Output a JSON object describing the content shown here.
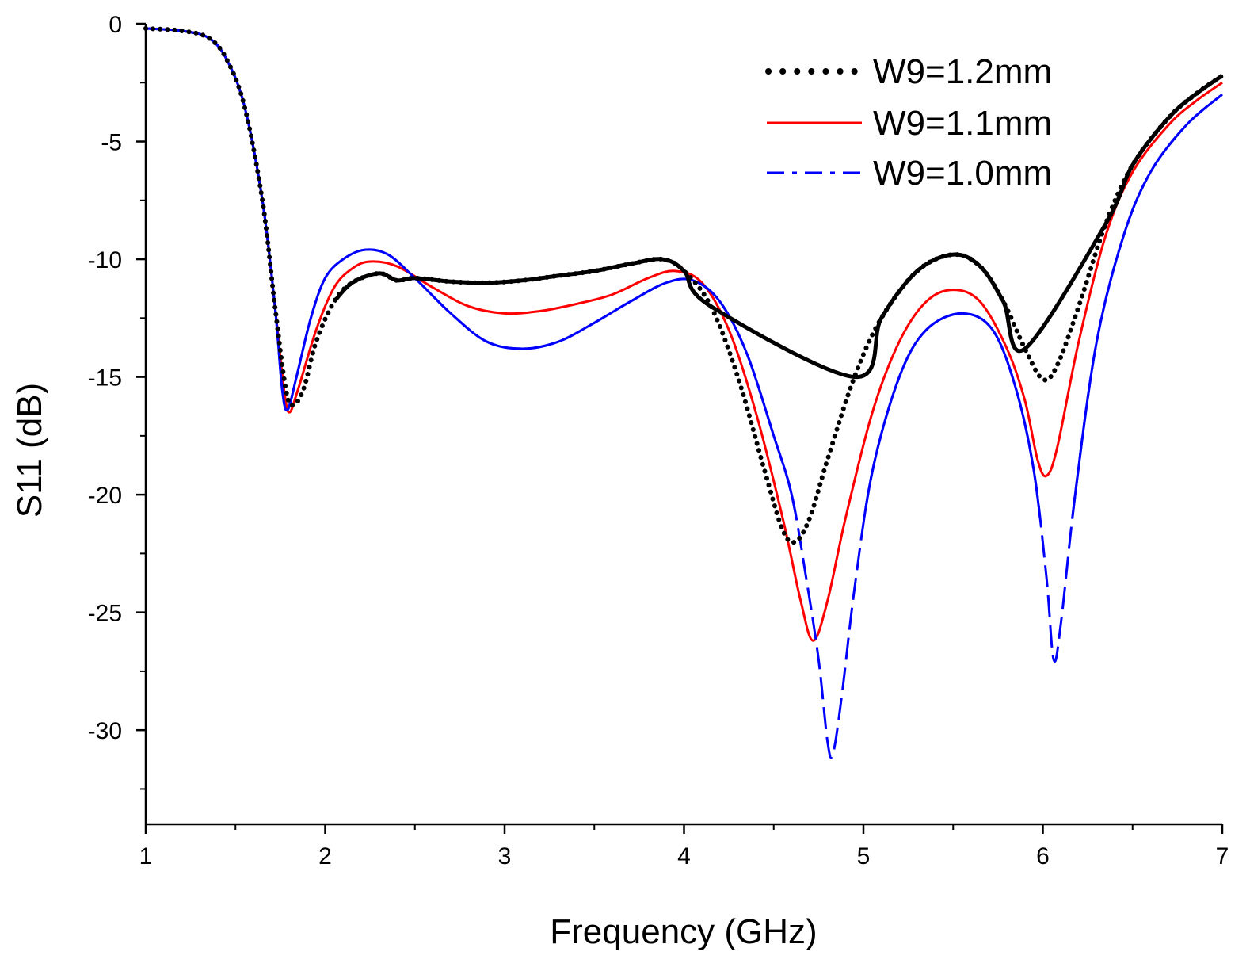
{
  "chart_data": {
    "type": "line",
    "title": "",
    "xlabel": "Frequency (GHz)",
    "ylabel": "S11 (dB)",
    "xlim": [
      1,
      7
    ],
    "ylim": [
      -34,
      0
    ],
    "x_ticks": [
      "1",
      "2",
      "3",
      "4",
      "5",
      "6",
      "7"
    ],
    "y_ticks": [
      "0",
      "-5",
      "-10",
      "-15",
      "-20",
      "-25",
      "-30"
    ],
    "grid": false,
    "legend_position": "top-right",
    "series": [
      {
        "name": "W9=1.2mm",
        "color": "#000000",
        "style": "dotted",
        "points": [
          [
            1.0,
            -0.2
          ],
          [
            1.2,
            -0.3
          ],
          [
            1.35,
            -0.6
          ],
          [
            1.45,
            -1.5
          ],
          [
            1.55,
            -3.5
          ],
          [
            1.65,
            -7.5
          ],
          [
            1.72,
            -12.0
          ],
          [
            1.78,
            -15.5
          ],
          [
            1.82,
            -16.2
          ],
          [
            1.88,
            -15.5
          ],
          [
            1.95,
            -13.5
          ],
          [
            2.05,
            -11.8
          ],
          [
            2.15,
            -11.0
          ],
          [
            2.3,
            -10.6
          ],
          [
            2.4,
            -10.9
          ],
          [
            2.5,
            -10.8
          ],
          [
            2.7,
            -10.95
          ],
          [
            2.9,
            -11.0
          ],
          [
            3.1,
            -10.9
          ],
          [
            3.3,
            -10.7
          ],
          [
            3.5,
            -10.5
          ],
          [
            3.7,
            -10.2
          ],
          [
            3.88,
            -10.0
          ],
          [
            4.0,
            -10.5
          ],
          [
            4.15,
            -12.0
          ],
          [
            4.3,
            -15.0
          ],
          [
            4.45,
            -19.0
          ],
          [
            4.55,
            -21.5
          ],
          [
            4.62,
            -22.0
          ],
          [
            4.7,
            -21.0
          ],
          [
            4.8,
            -18.5
          ],
          [
            4.95,
            -15.0
          ],
          [
            5.1,
            -12.5
          ],
          [
            5.3,
            -10.5
          ],
          [
            5.5,
            -9.8
          ],
          [
            5.65,
            -10.3
          ],
          [
            5.78,
            -11.8
          ],
          [
            5.9,
            -13.8
          ],
          [
            6.0,
            -15.1
          ],
          [
            6.08,
            -14.5
          ],
          [
            6.2,
            -12.0
          ],
          [
            6.35,
            -8.5
          ],
          [
            6.5,
            -6.0
          ],
          [
            6.7,
            -4.0
          ],
          [
            6.85,
            -3.0
          ],
          [
            7.0,
            -2.2
          ]
        ]
      },
      {
        "name": "W9=1.1mm",
        "color": "#ff0000",
        "style": "solid",
        "points": [
          [
            1.0,
            -0.2
          ],
          [
            1.2,
            -0.3
          ],
          [
            1.35,
            -0.6
          ],
          [
            1.45,
            -1.5
          ],
          [
            1.55,
            -3.5
          ],
          [
            1.65,
            -7.5
          ],
          [
            1.72,
            -12.0
          ],
          [
            1.77,
            -15.5
          ],
          [
            1.8,
            -16.5
          ],
          [
            1.85,
            -15.5
          ],
          [
            1.95,
            -13.0
          ],
          [
            2.05,
            -11.2
          ],
          [
            2.15,
            -10.4
          ],
          [
            2.25,
            -10.1
          ],
          [
            2.4,
            -10.3
          ],
          [
            2.6,
            -11.2
          ],
          [
            2.8,
            -12.0
          ],
          [
            3.0,
            -12.3
          ],
          [
            3.2,
            -12.2
          ],
          [
            3.4,
            -11.9
          ],
          [
            3.6,
            -11.5
          ],
          [
            3.8,
            -10.8
          ],
          [
            3.95,
            -10.5
          ],
          [
            4.1,
            -11.0
          ],
          [
            4.25,
            -13.0
          ],
          [
            4.4,
            -16.5
          ],
          [
            4.55,
            -21.0
          ],
          [
            4.65,
            -24.5
          ],
          [
            4.72,
            -26.2
          ],
          [
            4.8,
            -24.5
          ],
          [
            4.9,
            -21.0
          ],
          [
            5.05,
            -16.5
          ],
          [
            5.2,
            -13.5
          ],
          [
            5.35,
            -11.8
          ],
          [
            5.5,
            -11.3
          ],
          [
            5.65,
            -11.8
          ],
          [
            5.8,
            -13.8
          ],
          [
            5.9,
            -16.0
          ],
          [
            5.97,
            -18.5
          ],
          [
            6.02,
            -19.2
          ],
          [
            6.08,
            -18.0
          ],
          [
            6.2,
            -13.5
          ],
          [
            6.35,
            -9.0
          ],
          [
            6.5,
            -6.3
          ],
          [
            6.7,
            -4.3
          ],
          [
            6.85,
            -3.3
          ],
          [
            7.0,
            -2.5
          ]
        ]
      },
      {
        "name": "W9=1.0mm",
        "color": "#0000ff",
        "style": "solid-dashdot",
        "points": [
          [
            1.0,
            -0.2
          ],
          [
            1.2,
            -0.3
          ],
          [
            1.35,
            -0.6
          ],
          [
            1.45,
            -1.5
          ],
          [
            1.55,
            -3.5
          ],
          [
            1.65,
            -7.5
          ],
          [
            1.72,
            -12.0
          ],
          [
            1.76,
            -15.5
          ],
          [
            1.79,
            -16.4
          ],
          [
            1.84,
            -15.0
          ],
          [
            1.92,
            -12.5
          ],
          [
            2.0,
            -10.8
          ],
          [
            2.1,
            -10.0
          ],
          [
            2.22,
            -9.6
          ],
          [
            2.35,
            -9.8
          ],
          [
            2.5,
            -10.8
          ],
          [
            2.7,
            -12.3
          ],
          [
            2.9,
            -13.5
          ],
          [
            3.1,
            -13.8
          ],
          [
            3.3,
            -13.5
          ],
          [
            3.5,
            -12.7
          ],
          [
            3.7,
            -11.8
          ],
          [
            3.9,
            -11.0
          ],
          [
            4.05,
            -10.9
          ],
          [
            4.2,
            -11.8
          ],
          [
            4.35,
            -14.0
          ],
          [
            4.5,
            -17.5
          ],
          [
            4.6,
            -20.0
          ],
          [
            4.68,
            -23.5
          ],
          [
            4.75,
            -27.0
          ],
          [
            4.8,
            -30.5
          ],
          [
            4.83,
            -31.0
          ],
          [
            4.88,
            -28.5
          ],
          [
            4.95,
            -24.0
          ],
          [
            5.05,
            -19.0
          ],
          [
            5.2,
            -15.0
          ],
          [
            5.35,
            -13.0
          ],
          [
            5.55,
            -12.3
          ],
          [
            5.72,
            -13.0
          ],
          [
            5.85,
            -15.5
          ],
          [
            5.95,
            -19.0
          ],
          [
            6.02,
            -23.5
          ],
          [
            6.06,
            -27.0
          ],
          [
            6.1,
            -25.5
          ],
          [
            6.18,
            -20.0
          ],
          [
            6.3,
            -13.5
          ],
          [
            6.45,
            -9.0
          ],
          [
            6.6,
            -6.3
          ],
          [
            6.8,
            -4.3
          ],
          [
            7.0,
            -3.0
          ]
        ]
      }
    ]
  }
}
